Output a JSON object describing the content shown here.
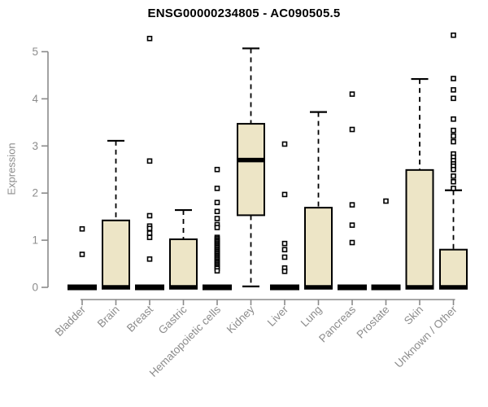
{
  "chart_data": {
    "type": "boxplot",
    "title": "ENSG00000234805 - AC090505.5",
    "ylabel": "Expression",
    "xlabel": "",
    "ylim": [
      0,
      5
    ],
    "yticks": [
      0,
      1,
      2,
      3,
      4,
      5
    ],
    "grid": false,
    "legend": "none",
    "categories": [
      "Bladder",
      "Brain",
      "Breast",
      "Gastric",
      "Hematopoietic cells",
      "Kidney",
      "Liver",
      "Lung",
      "Pancreas",
      "Prostate",
      "Skin",
      "Unknown / Other"
    ],
    "boxes": [
      {
        "category": "Bladder",
        "q1": 0,
        "median": 0,
        "q3": 0,
        "whisker_low": 0,
        "whisker_high": 0,
        "outliers": [
          1.24,
          0.7
        ]
      },
      {
        "category": "Brain",
        "q1": 0,
        "median": 0,
        "q3": 1.42,
        "whisker_low": 0,
        "whisker_high": 3.11,
        "outliers": []
      },
      {
        "category": "Breast",
        "q1": 0,
        "median": 0,
        "q3": 0,
        "whisker_low": 0,
        "whisker_high": 0,
        "outliers": [
          5.28,
          2.68,
          1.52,
          1.3,
          1.25,
          1.15,
          1.06,
          0.6
        ]
      },
      {
        "category": "Gastric",
        "q1": 0,
        "median": 0,
        "q3": 1.02,
        "whisker_low": 0,
        "whisker_high": 1.64,
        "outliers": []
      },
      {
        "category": "Hematopoietic cells",
        "q1": 0,
        "median": 0,
        "q3": 0,
        "whisker_low": 0,
        "whisker_high": 0,
        "outliers": [
          2.5,
          2.1,
          1.8,
          1.61,
          1.46,
          1.33,
          1.27,
          1.06,
          1.03,
          1.0,
          0.97,
          0.94,
          0.91,
          0.88,
          0.85,
          0.82,
          0.79,
          0.76,
          0.73,
          0.7,
          0.67,
          0.64,
          0.61,
          0.58,
          0.55,
          0.52,
          0.49,
          0.46,
          0.43,
          0.4,
          0.35
        ]
      },
      {
        "category": "Kidney",
        "q1": 1.53,
        "median": 2.7,
        "q3": 3.47,
        "whisker_low": 0.02,
        "whisker_high": 5.07,
        "outliers": []
      },
      {
        "category": "Liver",
        "q1": 0,
        "median": 0,
        "q3": 0,
        "whisker_low": 0,
        "whisker_high": 0,
        "outliers": [
          3.04,
          1.97,
          0.93,
          0.8,
          0.64,
          0.41,
          0.34
        ]
      },
      {
        "category": "Lung",
        "q1": 0,
        "median": 0,
        "q3": 1.69,
        "whisker_low": 0,
        "whisker_high": 3.72,
        "outliers": []
      },
      {
        "category": "Pancreas",
        "q1": 0,
        "median": 0,
        "q3": 0,
        "whisker_low": 0,
        "whisker_high": 0,
        "outliers": [
          4.1,
          3.35,
          1.75,
          1.32,
          0.95
        ]
      },
      {
        "category": "Prostate",
        "q1": 0,
        "median": 0,
        "q3": 0,
        "whisker_low": 0,
        "whisker_high": 0,
        "outliers": [
          1.83
        ]
      },
      {
        "category": "Skin",
        "q1": 0,
        "median": 0,
        "q3": 2.49,
        "whisker_low": 0,
        "whisker_high": 4.42,
        "outliers": []
      },
      {
        "category": "Unknown / Other",
        "q1": 0,
        "median": 0,
        "q3": 0.8,
        "whisker_low": 0,
        "whisker_high": 2.06,
        "outliers": [
          5.35,
          4.43,
          4.19,
          4.01,
          3.57,
          3.33,
          3.21,
          3.09,
          2.83,
          2.76,
          2.69,
          2.62,
          2.57,
          2.5,
          2.36,
          2.24,
          2.1
        ]
      }
    ],
    "colors": {
      "box_fill": "#ede5c6",
      "box_border": "#000000",
      "median": "#000000",
      "whisker": "#000000",
      "outlier_border": "#000000",
      "outlier_fill": "#ffffff",
      "axis": "#8a8a8a",
      "tick_text": "#8c8c8c",
      "title_text": "#000000",
      "background": "#ffffff"
    }
  }
}
